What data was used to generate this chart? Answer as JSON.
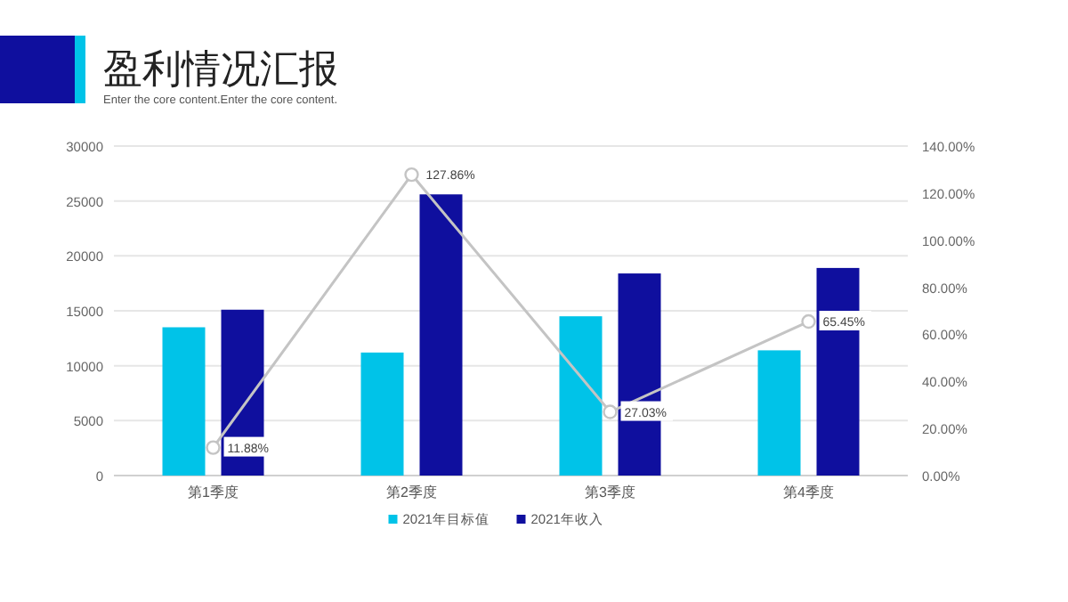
{
  "chart_data": {
    "type": "bar",
    "title": "盈利情况汇报",
    "subtitle": "Enter the core content.Enter the core content.",
    "categories": [
      "第1季度",
      "第2季度",
      "第3季度",
      "第4季度"
    ],
    "series": [
      {
        "name": "2021年目标值",
        "color": "#00c3e8",
        "values": [
          13500,
          11200,
          14500,
          11400
        ]
      },
      {
        "name": "2021年收入",
        "color": "#0f0f9e",
        "values": [
          15100,
          25600,
          18400,
          18900
        ]
      },
      {
        "type": "line",
        "axis": "y2",
        "color": "#c4c4c4",
        "marker": "circle",
        "values": [
          11.88,
          127.86,
          27.03,
          65.45
        ],
        "value_labels": [
          "11.88%",
          "127.86%",
          "27.03%",
          "65.45%"
        ]
      }
    ],
    "ylim": [
      0,
      30000
    ],
    "yticks": [
      0,
      5000,
      10000,
      15000,
      20000,
      25000,
      30000
    ],
    "y2lim": [
      0,
      140
    ],
    "y2ticks": [
      {
        "value": 0,
        "label": "0.00%"
      },
      {
        "value": 20,
        "label": "20.00%"
      },
      {
        "value": 40,
        "label": "40.00%"
      },
      {
        "value": 60,
        "label": "60.00%"
      },
      {
        "value": 80,
        "label": "80.00%"
      },
      {
        "value": 100,
        "label": "100.00%"
      },
      {
        "value": 120,
        "label": "120.00%"
      },
      {
        "value": 140,
        "label": "140.00%"
      }
    ],
    "grid": "y",
    "legend": "bottom"
  }
}
